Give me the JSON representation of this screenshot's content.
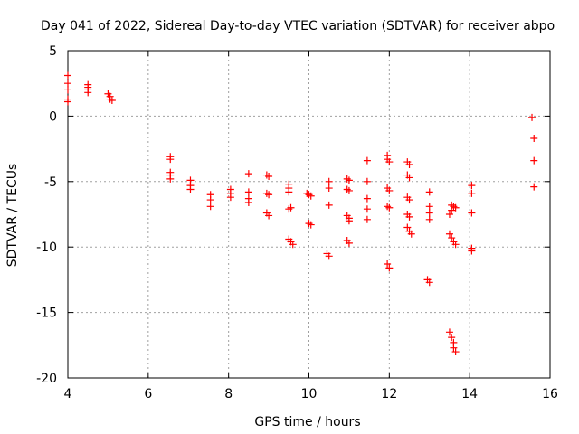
{
  "chart_data": {
    "type": "scatter",
    "title": "Day 041 of 2022, Sidereal Day-to-day VTEC variation (SDTVAR) for receiver abpo",
    "xlabel": "GPS time / hours",
    "ylabel": "SDTVAR / TECUs",
    "xlim": [
      4,
      16
    ],
    "ylim": [
      -20,
      5
    ],
    "xticks": [
      4,
      6,
      8,
      10,
      12,
      14,
      16
    ],
    "yticks": [
      5,
      0,
      -5,
      -10,
      -15,
      -20
    ],
    "grid": true,
    "marker": "plus",
    "color": "#ff0000",
    "series": [
      {
        "name": "SDTVAR",
        "points": [
          [
            4.0,
            3.1
          ],
          [
            4.0,
            2.5
          ],
          [
            4.0,
            2.0
          ],
          [
            4.0,
            1.3
          ],
          [
            4.0,
            1.1
          ],
          [
            4.5,
            2.4
          ],
          [
            4.5,
            2.2
          ],
          [
            4.5,
            2.0
          ],
          [
            4.5,
            1.8
          ],
          [
            5.0,
            1.7
          ],
          [
            5.05,
            1.5
          ],
          [
            5.05,
            1.3
          ],
          [
            5.1,
            1.2
          ],
          [
            6.55,
            -3.1
          ],
          [
            6.55,
            -3.3
          ],
          [
            6.55,
            -4.3
          ],
          [
            6.55,
            -4.5
          ],
          [
            6.55,
            -4.8
          ],
          [
            7.05,
            -4.9
          ],
          [
            7.05,
            -5.3
          ],
          [
            7.05,
            -5.6
          ],
          [
            7.55,
            -6.0
          ],
          [
            7.55,
            -6.4
          ],
          [
            7.55,
            -6.9
          ],
          [
            8.05,
            -5.6
          ],
          [
            8.05,
            -5.9
          ],
          [
            8.05,
            -6.2
          ],
          [
            8.5,
            -4.4
          ],
          [
            8.5,
            -5.8
          ],
          [
            8.5,
            -6.3
          ],
          [
            8.5,
            -6.6
          ],
          [
            8.95,
            -4.5
          ],
          [
            9.0,
            -4.6
          ],
          [
            8.95,
            -5.9
          ],
          [
            9.0,
            -6.0
          ],
          [
            8.95,
            -7.4
          ],
          [
            9.0,
            -7.6
          ],
          [
            9.5,
            -5.2
          ],
          [
            9.5,
            -5.5
          ],
          [
            9.5,
            -5.8
          ],
          [
            9.55,
            -7.0
          ],
          [
            9.5,
            -7.1
          ],
          [
            9.5,
            -9.4
          ],
          [
            9.55,
            -9.6
          ],
          [
            9.6,
            -9.8
          ],
          [
            9.95,
            -5.9
          ],
          [
            10.0,
            -6.0
          ],
          [
            10.05,
            -6.1
          ],
          [
            10.0,
            -8.2
          ],
          [
            10.05,
            -8.3
          ],
          [
            10.5,
            -5.0
          ],
          [
            10.5,
            -5.5
          ],
          [
            10.5,
            -6.8
          ],
          [
            10.45,
            -10.5
          ],
          [
            10.5,
            -10.7
          ],
          [
            10.95,
            -4.8
          ],
          [
            11.0,
            -4.9
          ],
          [
            10.95,
            -5.6
          ],
          [
            11.0,
            -5.7
          ],
          [
            10.95,
            -7.6
          ],
          [
            11.0,
            -7.8
          ],
          [
            11.0,
            -8.0
          ],
          [
            10.95,
            -9.5
          ],
          [
            11.0,
            -9.7
          ],
          [
            11.45,
            -3.4
          ],
          [
            11.45,
            -5.0
          ],
          [
            11.45,
            -6.3
          ],
          [
            11.45,
            -7.1
          ],
          [
            11.45,
            -7.9
          ],
          [
            11.95,
            -3.0
          ],
          [
            11.95,
            -3.3
          ],
          [
            12.0,
            -3.5
          ],
          [
            11.95,
            -5.5
          ],
          [
            12.0,
            -5.7
          ],
          [
            11.95,
            -6.9
          ],
          [
            12.0,
            -7.0
          ],
          [
            11.95,
            -11.3
          ],
          [
            12.0,
            -11.6
          ],
          [
            12.45,
            -3.5
          ],
          [
            12.5,
            -3.7
          ],
          [
            12.45,
            -4.5
          ],
          [
            12.5,
            -4.7
          ],
          [
            12.45,
            -6.2
          ],
          [
            12.5,
            -6.4
          ],
          [
            12.45,
            -7.5
          ],
          [
            12.5,
            -7.7
          ],
          [
            12.45,
            -8.5
          ],
          [
            12.5,
            -8.8
          ],
          [
            12.55,
            -9.0
          ],
          [
            13.0,
            -5.8
          ],
          [
            13.0,
            -6.9
          ],
          [
            13.0,
            -7.4
          ],
          [
            13.0,
            -7.9
          ],
          [
            12.95,
            -12.5
          ],
          [
            13.0,
            -12.7
          ],
          [
            13.55,
            -6.8
          ],
          [
            13.6,
            -6.9
          ],
          [
            13.65,
            -7.0
          ],
          [
            13.55,
            -7.2
          ],
          [
            13.5,
            -7.5
          ],
          [
            13.5,
            -9.0
          ],
          [
            13.55,
            -9.3
          ],
          [
            13.6,
            -9.6
          ],
          [
            13.65,
            -9.8
          ],
          [
            13.5,
            -16.5
          ],
          [
            13.55,
            -16.9
          ],
          [
            13.6,
            -17.3
          ],
          [
            13.6,
            -17.7
          ],
          [
            13.65,
            -18.0
          ],
          [
            14.05,
            -5.3
          ],
          [
            14.05,
            -5.9
          ],
          [
            14.05,
            -7.4
          ],
          [
            14.05,
            -10.1
          ],
          [
            14.05,
            -10.3
          ],
          [
            15.55,
            -0.1
          ],
          [
            15.6,
            -1.7
          ],
          [
            15.6,
            -3.4
          ],
          [
            15.6,
            -5.4
          ]
        ]
      }
    ]
  }
}
